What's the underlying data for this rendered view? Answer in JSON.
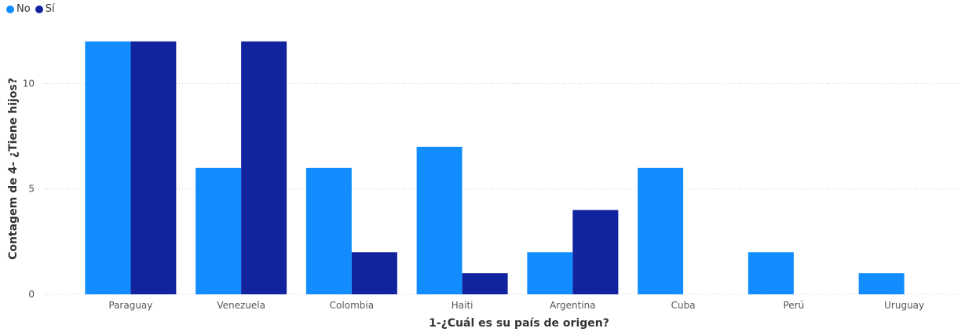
{
  "chart_data": {
    "type": "bar",
    "categories": [
      "Paraguay",
      "Venezuela",
      "Colombia",
      "Haiti",
      "Argentina",
      "Cuba",
      "Perú",
      "Uruguay"
    ],
    "series": [
      {
        "name": "No",
        "color": "#118DFF",
        "values": [
          12,
          6,
          6,
          7,
          2,
          6,
          2,
          1
        ]
      },
      {
        "name": "Sí",
        "color": "#12239E",
        "values": [
          12,
          12,
          2,
          1,
          4,
          0,
          0,
          0
        ]
      }
    ],
    "xlabel": "1-¿Cuál es su país de origen?",
    "ylabel": "Contagem de 4- ¿Tiene hijos?",
    "yticks": [
      0,
      5,
      10
    ],
    "ylim": [
      0,
      12.4
    ],
    "grid": true,
    "legend_position": "top-left"
  }
}
